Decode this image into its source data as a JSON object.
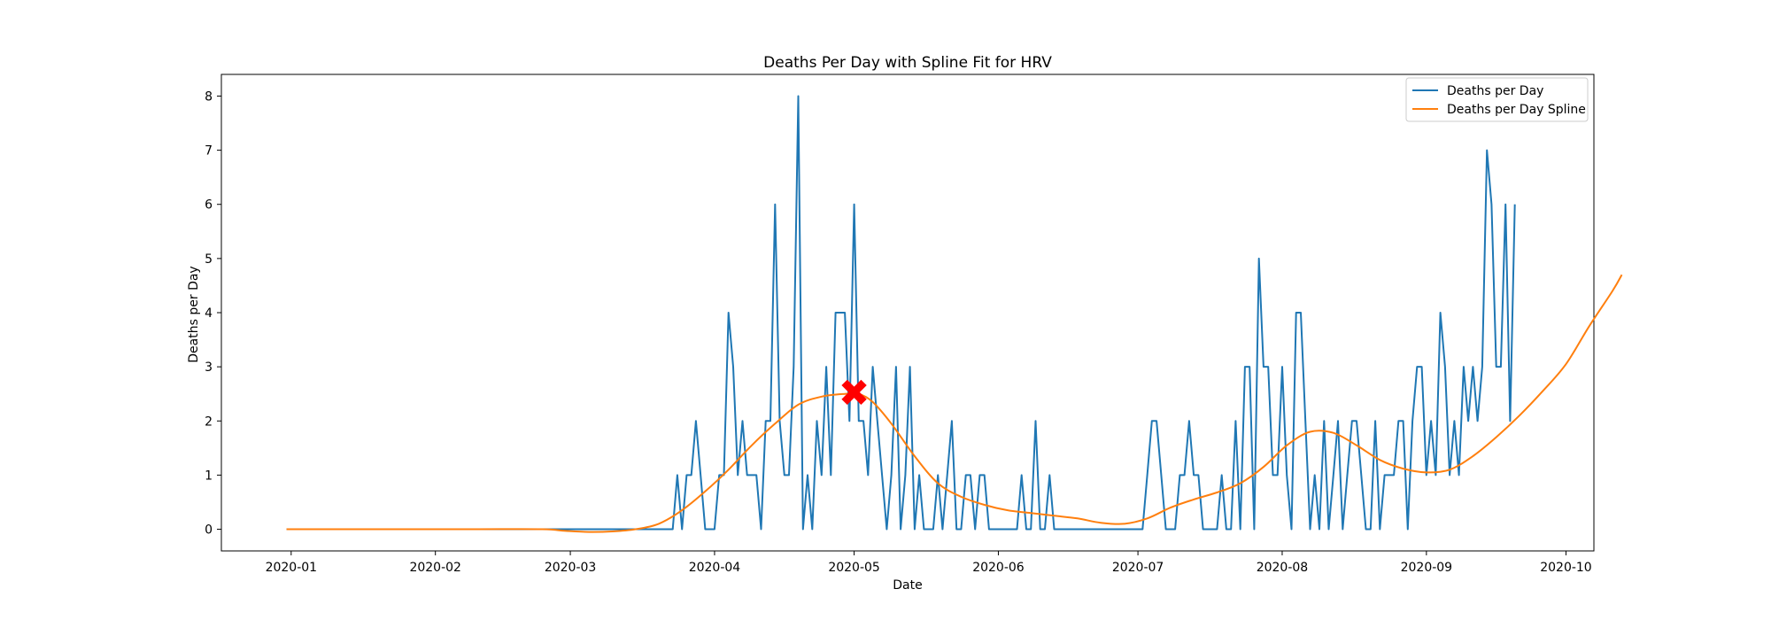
{
  "chart_data": {
    "type": "line",
    "title": "Deaths Per Day with Spline Fit for HRV",
    "xlabel": "Date",
    "ylabel": "Deaths per Day",
    "x_start": "2019-12-31",
    "xlim": [
      "2019-12-17",
      "2020-10-07"
    ],
    "ylim": [
      -0.4,
      8.4
    ],
    "grid": false,
    "legend_position": "top-right",
    "x_ticks": [
      "2020-01",
      "2020-02",
      "2020-03",
      "2020-04",
      "2020-05",
      "2020-06",
      "2020-07",
      "2020-08",
      "2020-09",
      "2020-10"
    ],
    "x_tick_dates": [
      "2020-01-01",
      "2020-02-01",
      "2020-03-01",
      "2020-04-01",
      "2020-05-01",
      "2020-06-01",
      "2020-07-01",
      "2020-08-01",
      "2020-09-01",
      "2020-10-01"
    ],
    "y_ticks": [
      0,
      1,
      2,
      3,
      4,
      5,
      6,
      7,
      8
    ],
    "series": [
      {
        "name": "Deaths per Day",
        "color": "#1f77b4",
        "values": [
          0,
          0,
          0,
          0,
          0,
          0,
          0,
          0,
          0,
          0,
          0,
          0,
          0,
          0,
          0,
          0,
          0,
          0,
          0,
          0,
          0,
          0,
          0,
          0,
          0,
          0,
          0,
          0,
          0,
          0,
          0,
          0,
          0,
          0,
          0,
          0,
          0,
          0,
          0,
          0,
          0,
          0,
          0,
          0,
          0,
          0,
          0,
          0,
          0,
          0,
          0,
          0,
          0,
          0,
          0,
          0,
          0,
          0,
          0,
          0,
          0,
          0,
          0,
          0,
          0,
          0,
          0,
          0,
          0,
          0,
          0,
          0,
          0,
          0,
          0,
          0,
          0,
          0,
          0,
          0,
          0,
          0,
          0,
          0,
          1,
          0,
          1,
          1,
          2,
          1,
          0,
          0,
          0,
          1,
          1,
          4,
          3,
          1,
          2,
          1,
          1,
          1,
          0,
          2,
          2,
          6,
          2,
          1,
          1,
          3,
          8,
          0,
          1,
          0,
          2,
          1,
          3,
          1,
          4,
          4,
          4,
          2,
          6,
          2,
          2,
          1,
          3,
          2,
          1,
          0,
          1,
          3,
          0,
          1,
          3,
          0,
          1,
          0,
          0,
          0,
          1,
          0,
          1,
          2,
          0,
          0,
          1,
          1,
          0,
          1,
          1,
          0,
          0,
          0,
          0,
          0,
          0,
          0,
          1,
          0,
          0,
          2,
          0,
          0,
          1,
          0,
          0,
          0,
          0,
          0,
          0,
          0,
          0,
          0,
          0,
          0,
          0,
          0,
          0,
          0,
          0,
          0,
          0,
          0,
          0,
          1,
          2,
          2,
          1,
          0,
          0,
          0,
          1,
          1,
          2,
          1,
          1,
          0,
          0,
          0,
          0,
          1,
          0,
          0,
          2,
          0,
          3,
          3,
          0,
          5,
          3,
          3,
          1,
          1,
          3,
          1,
          0,
          4,
          4,
          2,
          0,
          1,
          0,
          2,
          0,
          1,
          2,
          0,
          1,
          2,
          2,
          1,
          0,
          0,
          2,
          0,
          1,
          1,
          1,
          2,
          2,
          0,
          2,
          3,
          3,
          1,
          2,
          1,
          4,
          3,
          1,
          2,
          1,
          3,
          2,
          3,
          2,
          3,
          7,
          6,
          3,
          3,
          6,
          2,
          6
        ]
      },
      {
        "name": "Deaths per Day Spline",
        "color": "#ff7f0e",
        "knots": [
          [
            0,
            0
          ],
          [
            20,
            0
          ],
          [
            40,
            0
          ],
          [
            55,
            0
          ],
          [
            60,
            -0.03
          ],
          [
            65,
            -0.05
          ],
          [
            70,
            -0.04
          ],
          [
            75,
            0
          ],
          [
            80,
            0.1
          ],
          [
            85,
            0.35
          ],
          [
            90,
            0.7
          ],
          [
            95,
            1.1
          ],
          [
            100,
            1.55
          ],
          [
            105,
            1.95
          ],
          [
            110,
            2.3
          ],
          [
            115,
            2.45
          ],
          [
            120,
            2.5
          ],
          [
            123,
            2.5
          ],
          [
            126,
            2.35
          ],
          [
            130,
            1.95
          ],
          [
            135,
            1.35
          ],
          [
            140,
            0.85
          ],
          [
            145,
            0.6
          ],
          [
            150,
            0.45
          ],
          [
            155,
            0.35
          ],
          [
            160,
            0.3
          ],
          [
            165,
            0.25
          ],
          [
            170,
            0.2
          ],
          [
            175,
            0.12
          ],
          [
            180,
            0.1
          ],
          [
            185,
            0.2
          ],
          [
            190,
            0.4
          ],
          [
            195,
            0.55
          ],
          [
            200,
            0.68
          ],
          [
            205,
            0.85
          ],
          [
            210,
            1.15
          ],
          [
            215,
            1.55
          ],
          [
            220,
            1.8
          ],
          [
            225,
            1.78
          ],
          [
            230,
            1.55
          ],
          [
            235,
            1.28
          ],
          [
            240,
            1.12
          ],
          [
            245,
            1.05
          ],
          [
            250,
            1.1
          ],
          [
            255,
            1.35
          ],
          [
            260,
            1.7
          ],
          [
            265,
            2.1
          ],
          [
            270,
            2.55
          ],
          [
            275,
            3.05
          ],
          [
            280,
            3.75
          ],
          [
            285,
            4.4
          ],
          [
            287,
            4.7
          ]
        ]
      }
    ],
    "marker": {
      "label": "",
      "color": "#ff0000",
      "shape": "X",
      "x": 122,
      "y": 2.53
    }
  }
}
